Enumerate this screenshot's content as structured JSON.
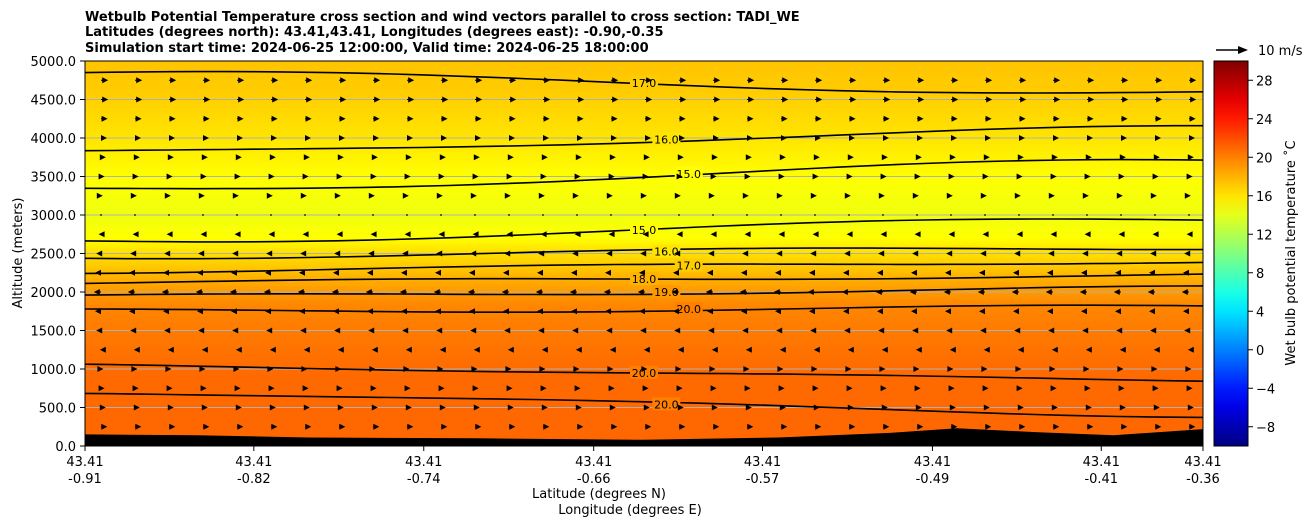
{
  "chart_data": {
    "type": "heatmap",
    "title": [
      "Wetbulb Potential Temperature cross section and wind vectors parallel to cross section: TADI_WE",
      "Latitudes (degrees north): 43.41,43.41, Longitudes (degrees east): -0.90,-0.35",
      "Simulation start time: 2024-06-25 12:00:00, Valid time: 2024-06-25 18:00:00"
    ],
    "xlabel": [
      "Latitude (degrees N)",
      "Longitude (degrees E)"
    ],
    "ylabel": "Altitude (meters)",
    "ylim": [
      0,
      5000
    ],
    "yticks": [
      "0.0",
      "500.0",
      "1000.0",
      "1500.0",
      "2000.0",
      "2500.0",
      "3000.0",
      "3500.0",
      "4000.0",
      "4500.0",
      "5000.0"
    ],
    "xticks": [
      {
        "lat": "43.41",
        "lon": "-0.91"
      },
      {
        "lat": "43.41",
        "lon": "-0.82"
      },
      {
        "lat": "43.41",
        "lon": "-0.74"
      },
      {
        "lat": "43.41",
        "lon": "-0.66"
      },
      {
        "lat": "43.41",
        "lon": "-0.57"
      },
      {
        "lat": "43.41",
        "lon": "-0.49"
      },
      {
        "lat": "43.41",
        "lon": "-0.41"
      },
      {
        "lat": "43.41",
        "lon": "-0.36"
      }
    ],
    "grid": "horizontal",
    "colorbar": {
      "label": "Wet bulb potential temperature ˚C",
      "colormap": "jet",
      "range": [
        -10,
        30
      ],
      "ticks": [
        "−8",
        "−4",
        "0",
        "4",
        "8",
        "12",
        "16",
        "20",
        "24",
        "28"
      ]
    },
    "quiver_key": "10 m/s",
    "field_profile": [
      {
        "altitude": 0,
        "value": 21.0
      },
      {
        "altitude": 1000,
        "value": 20.8
      },
      {
        "altitude": 1800,
        "value": 19.8
      },
      {
        "altitude": 2000,
        "value": 19.0
      },
      {
        "altitude": 2200,
        "value": 18.0
      },
      {
        "altitude": 2350,
        "value": 17.0
      },
      {
        "altitude": 2550,
        "value": 16.0
      },
      {
        "altitude": 2700,
        "value": 15.0
      },
      {
        "altitude": 3000,
        "value": 14.4
      },
      {
        "altitude": 3500,
        "value": 15.0
      },
      {
        "altitude": 4000,
        "value": 16.0
      },
      {
        "altitude": 4600,
        "value": 17.0
      },
      {
        "altitude": 5000,
        "value": 17.3
      }
    ],
    "contours": [
      {
        "label": "17.0",
        "altitude_left": 4850,
        "altitude_right": 4580
      },
      {
        "label": "16.0",
        "altitude_left": 3810,
        "altitude_right": 4130
      },
      {
        "label": "15.0",
        "altitude_left": 3320,
        "altitude_right": 3700
      },
      {
        "label": "15.0",
        "altitude_left": 2660,
        "altitude_right": 2950
      },
      {
        "label": "16.0",
        "altitude_left": 2460,
        "altitude_right": 2580
      },
      {
        "label": "17.0",
        "altitude_left": 2270,
        "altitude_right": 2400
      },
      {
        "label": "18.0",
        "altitude_left": 2120,
        "altitude_right": 2220
      },
      {
        "label": "19.0",
        "altitude_left": 1940,
        "altitude_right": 2050
      },
      {
        "label": "20.0",
        "altitude_left": 1750,
        "altitude_right": 1800
      },
      {
        "label": "20.0",
        "altitude_left": 1050,
        "altitude_right": 850
      },
      {
        "label": "20.0",
        "altitude_left": 700,
        "altitude_right": 400
      }
    ],
    "wind_profile": [
      {
        "altitude": 100,
        "u": 3
      },
      {
        "altitude": 500,
        "u": 2
      },
      {
        "altitude": 1000,
        "u": 1
      },
      {
        "altitude": 1500,
        "u": -2
      },
      {
        "altitude": 2000,
        "u": -3
      },
      {
        "altitude": 2500,
        "u": -2
      },
      {
        "altitude": 3000,
        "u": 0
      },
      {
        "altitude": 3500,
        "u": 1.5
      },
      {
        "altitude": 4000,
        "u": 2.5
      },
      {
        "altitude": 4500,
        "u": 3
      },
      {
        "altitude": 5000,
        "u": 3
      }
    ],
    "terrain": [
      {
        "x": 0.0,
        "altitude": 150
      },
      {
        "x": 0.1,
        "altitude": 140
      },
      {
        "x": 0.2,
        "altitude": 110
      },
      {
        "x": 0.35,
        "altitude": 100
      },
      {
        "x": 0.5,
        "altitude": 80
      },
      {
        "x": 0.62,
        "altitude": 110
      },
      {
        "x": 0.72,
        "altitude": 170
      },
      {
        "x": 0.78,
        "altitude": 230
      },
      {
        "x": 0.85,
        "altitude": 180
      },
      {
        "x": 0.92,
        "altitude": 140
      },
      {
        "x": 1.0,
        "altitude": 220
      }
    ]
  }
}
